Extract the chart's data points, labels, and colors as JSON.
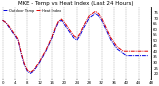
{
  "title": "MKE - Temp vs Heat Index (Last 24 Hours)",
  "line1_label": "Outdoor Temp",
  "line2_label": "Heat Index",
  "line1_color": "#0000dd",
  "line2_color": "#dd0000",
  "background_color": "#ffffff",
  "grid_color": "#808080",
  "x_values": [
    0,
    1,
    2,
    3,
    4,
    5,
    6,
    7,
    8,
    9,
    10,
    11,
    12,
    13,
    14,
    15,
    16,
    17,
    18,
    19,
    20,
    21,
    22,
    23,
    24,
    25,
    26,
    27,
    28,
    29,
    30,
    31,
    32,
    33,
    34,
    35,
    36,
    37,
    38,
    39,
    40,
    41,
    42,
    43,
    44,
    45,
    46,
    47
  ],
  "temp_values": [
    68,
    66,
    62,
    58,
    54,
    50,
    38,
    28,
    22,
    20,
    22,
    26,
    30,
    35,
    40,
    46,
    52,
    60,
    66,
    68,
    64,
    60,
    56,
    52,
    50,
    54,
    60,
    65,
    70,
    72,
    74,
    72,
    68,
    62,
    56,
    50,
    46,
    42,
    40,
    38,
    36,
    36,
    36,
    36,
    36,
    36,
    36,
    36
  ],
  "heat_values": [
    68,
    66,
    63,
    59,
    55,
    51,
    39,
    29,
    23,
    21,
    23,
    27,
    31,
    36,
    41,
    47,
    53,
    61,
    67,
    69,
    66,
    62,
    58,
    54,
    52,
    56,
    62,
    67,
    72,
    74,
    76,
    74,
    70,
    64,
    58,
    52,
    48,
    44,
    42,
    40,
    40,
    40,
    40,
    40,
    40,
    40,
    40,
    40
  ],
  "ylim_min": 15,
  "ylim_max": 80,
  "y_ticks": [
    20,
    25,
    30,
    35,
    40,
    45,
    50,
    55,
    60,
    65,
    70,
    75
  ],
  "x_tick_positions": [
    0,
    4,
    8,
    12,
    16,
    20,
    24,
    28,
    32,
    36,
    40,
    44,
    48
  ],
  "x_tick_labels": [
    "0",
    "4",
    "8",
    "12",
    "16",
    "20",
    "24",
    "28",
    "32",
    "36",
    "40",
    "44",
    "48"
  ],
  "title_fontsize": 4.0,
  "tick_fontsize": 2.8,
  "legend_fontsize": 2.5
}
